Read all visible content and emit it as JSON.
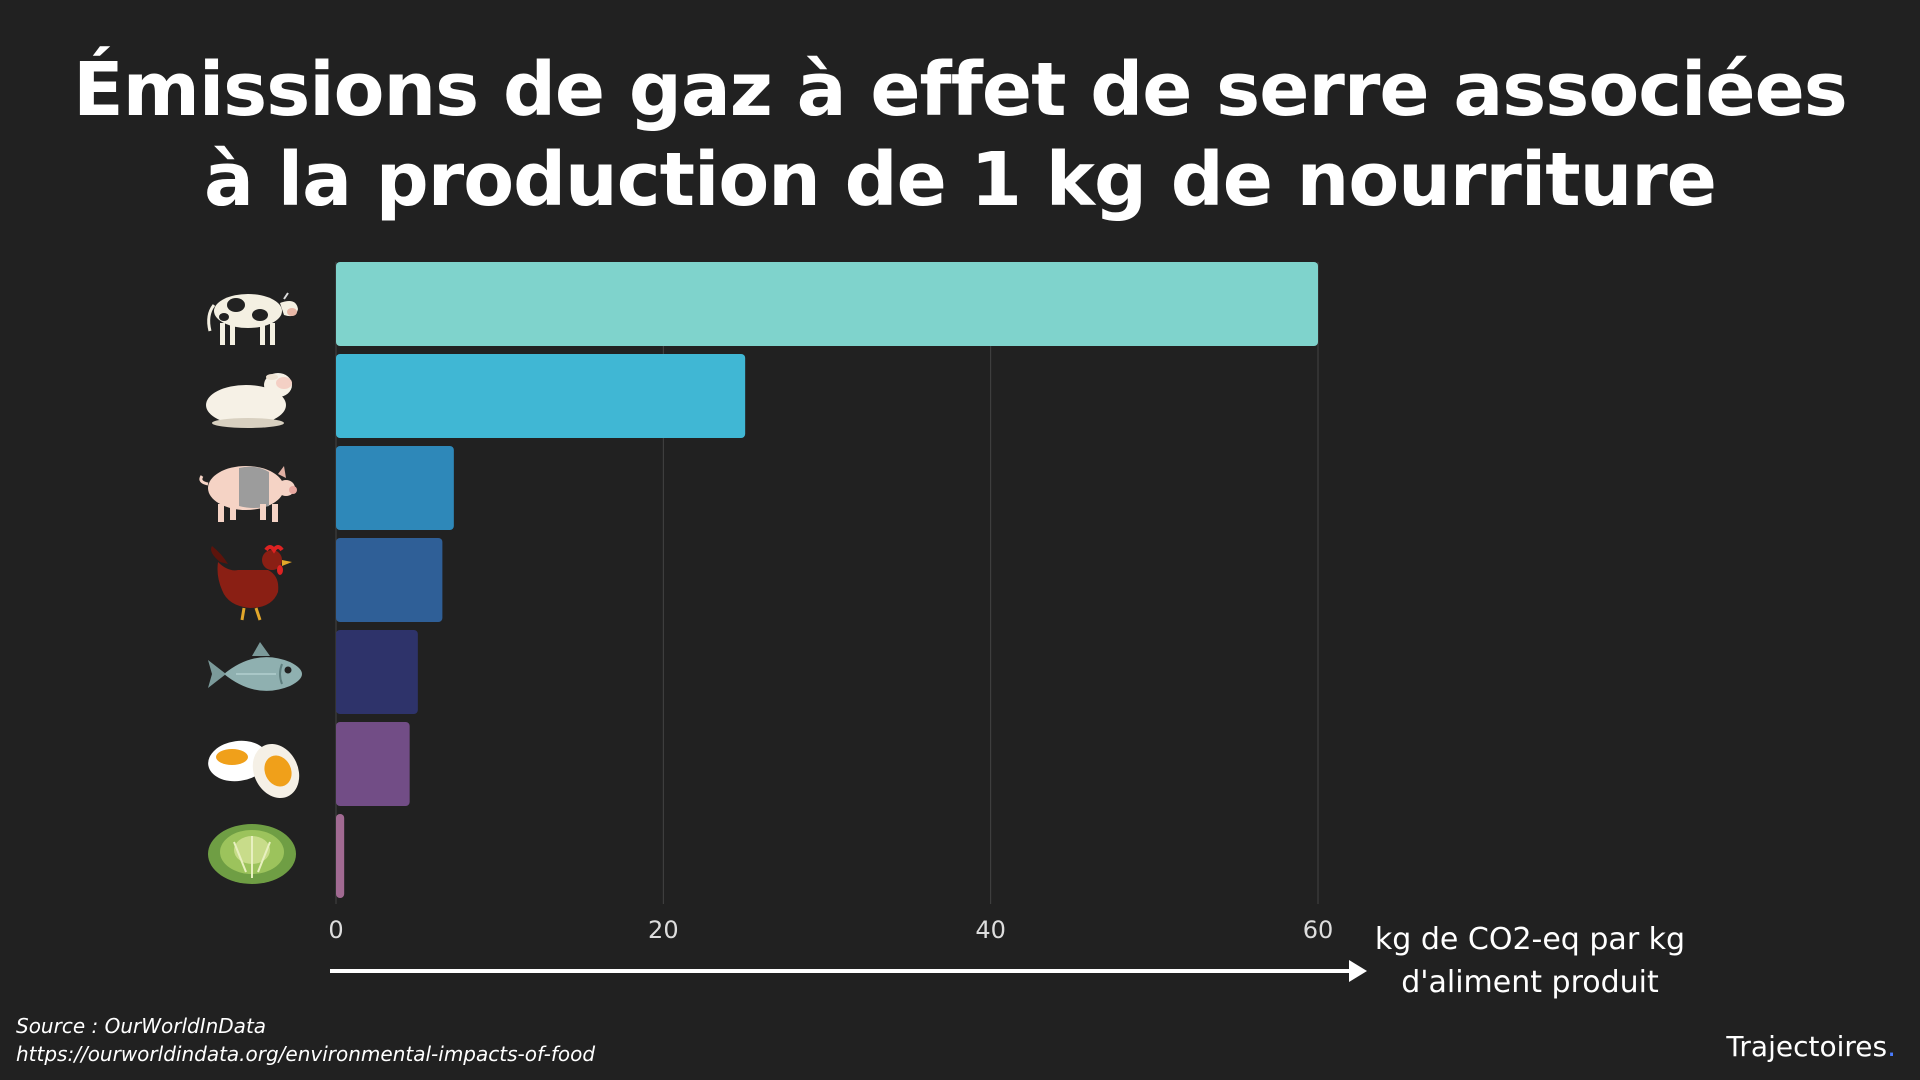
{
  "title": "Émissions de gaz à effet de serre associées à la production de 1 kg de nourriture",
  "axis_title_line1": "kg de CO2-eq par kg",
  "axis_title_line2": "d'aliment produit",
  "source_line1": "Source : OurWorldInData",
  "source_line2": "https://ourworldindata.org/environmental-impacts-of-food",
  "brand": "Trajectoires",
  "brand_dot": ".",
  "colors": {
    "background": "#212121",
    "grid": "#444444",
    "text": "#ffffff",
    "brand_dot": "#4a7cff"
  },
  "chart_data": {
    "type": "bar",
    "orientation": "horizontal",
    "categories": [
      "cow-icon",
      "sheep-icon",
      "pig-icon",
      "chicken-icon",
      "fish-icon",
      "egg-icon",
      "lettuce-icon"
    ],
    "values": [
      60,
      25,
      7.2,
      6.5,
      5.0,
      4.5,
      0.5
    ],
    "colors": [
      "#7fd3cc",
      "#40b7d4",
      "#2e88b9",
      "#2f5f97",
      "#2e336a",
      "#724d86",
      "#a16a92"
    ],
    "xticks": [
      0,
      20,
      40,
      60
    ],
    "xlim": [
      0,
      60
    ],
    "grid": true,
    "legend": "none"
  }
}
